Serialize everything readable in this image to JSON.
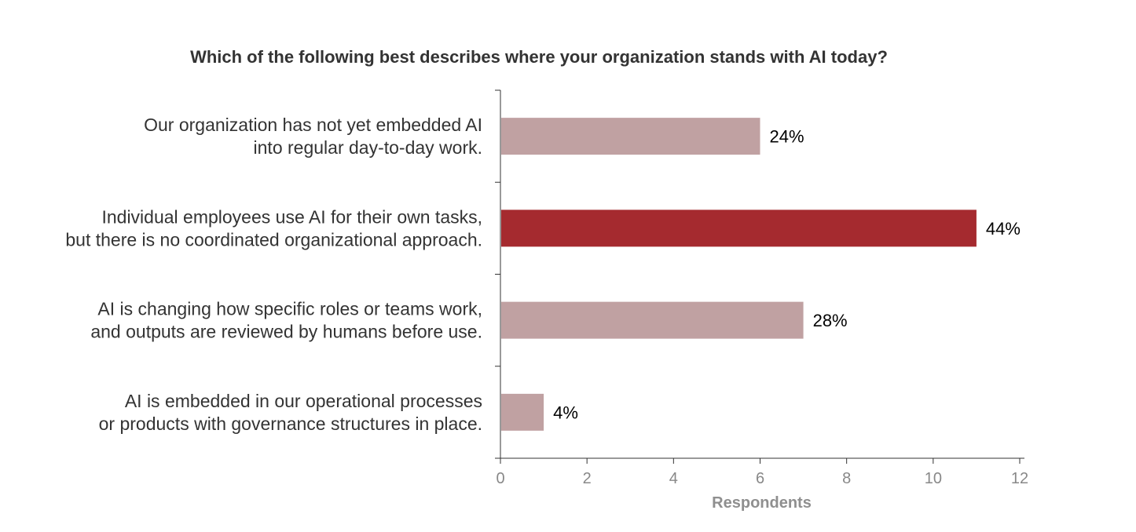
{
  "chart_data": {
    "type": "bar",
    "orientation": "horizontal",
    "title": "Which of the following best describes where your organization stands with AI today?",
    "xlabel": "Respondents",
    "ylabel": "",
    "xlim": [
      0,
      12
    ],
    "x_ticks": [
      0,
      2,
      4,
      6,
      8,
      10,
      12
    ],
    "grid": false,
    "categories": [
      [
        "Our organization has not yet embedded AI",
        "into regular day-to-day work."
      ],
      [
        "Individual employees use AI for their own tasks,",
        "but there is no coordinated organizational approach."
      ],
      [
        "AI is changing how specific roles or teams work,",
        "and outputs are reviewed by humans before use."
      ],
      [
        "AI is embedded in our operational processes",
        "or products with governance structures in place."
      ]
    ],
    "values": [
      6,
      11,
      7,
      1
    ],
    "data_labels": [
      "24%",
      "44%",
      "28%",
      "4%"
    ],
    "colors": [
      "#c0a1a2",
      "#a52a2f",
      "#c0a1a2",
      "#c0a1a2"
    ],
    "highlight_color": "#a52a2f",
    "base_color": "#c0a1a2"
  }
}
